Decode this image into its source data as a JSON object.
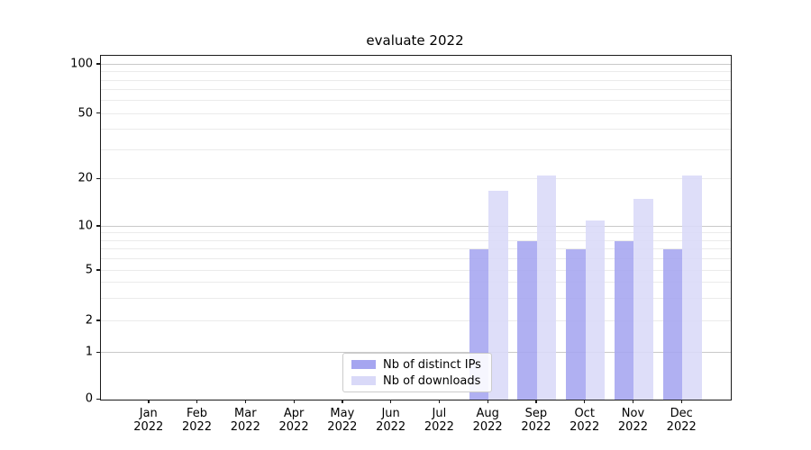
{
  "chart_data": {
    "type": "bar",
    "title": "evaluate 2022",
    "categories": [
      "Jan 2022",
      "Feb 2022",
      "Mar 2022",
      "Apr 2022",
      "May 2022",
      "Jun 2022",
      "Jul 2022",
      "Aug 2022",
      "Sep 2022",
      "Oct 2022",
      "Nov 2022",
      "Dec 2022"
    ],
    "series": [
      {
        "name": "Nb of distinct IPs",
        "color": "#a5a5f0",
        "values": [
          0,
          0,
          0,
          0,
          0,
          0,
          0,
          7,
          8,
          7,
          8,
          7
        ]
      },
      {
        "name": "Nb of downloads",
        "color": "#d9d9f8",
        "values": [
          0,
          0,
          0,
          0,
          0,
          0,
          0,
          17,
          21,
          11,
          15,
          21
        ]
      }
    ],
    "xlabel": "",
    "ylabel": "",
    "yscale": "symlog",
    "yticks": [
      0,
      1,
      2,
      5,
      10,
      20,
      50,
      100
    ],
    "minor_yticks": [
      3,
      4,
      6,
      7,
      8,
      9,
      30,
      40,
      60,
      70,
      80,
      90
    ],
    "major_grid_values": [
      1,
      10,
      100
    ],
    "ylim": [
      0,
      110
    ],
    "grid": "horizontal major+minor",
    "legend_position": "lower center inside axes",
    "colors": {
      "grid_major": "#c9c9c9",
      "grid_minor": "#ebebeb",
      "axis": "#1a1a1a",
      "background": "#ffffff"
    }
  }
}
